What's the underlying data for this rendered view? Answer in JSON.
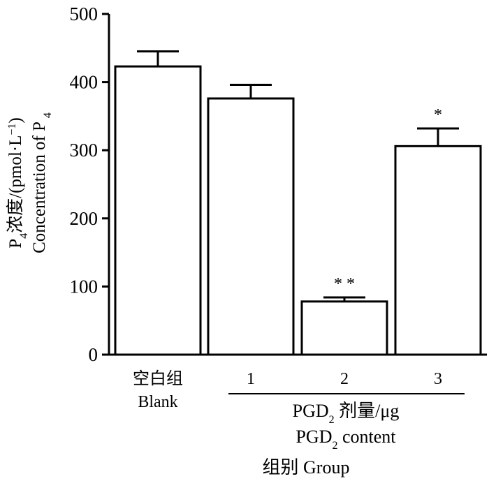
{
  "chart_data": {
    "type": "bar",
    "categories": [
      "空白组",
      "1",
      "2",
      "3"
    ],
    "category_sublabels": [
      "Blank",
      "",
      "",
      ""
    ],
    "values": [
      423,
      376,
      78,
      306
    ],
    "errors": [
      22,
      20,
      6,
      26
    ],
    "significance": [
      "",
      "",
      "* *",
      "*"
    ],
    "ylim": [
      0,
      500
    ],
    "yticks": [
      0,
      100,
      200,
      300,
      400,
      500
    ],
    "ylabel": {
      "prefix": "P",
      "prefix_sub": "4",
      "text": "浓度/(pmol·L",
      "sup": "−1",
      "suffix": ")",
      "english": "Concentration of P",
      "english_sub": "4"
    },
    "xlabel": {
      "dose_main": "PGD",
      "dose_sub": "2",
      "dose_suffix": " 剂量/μg",
      "content_main": "PGD",
      "content_sub": "2",
      "content_suffix": " content",
      "group": "组别 Group"
    },
    "grid": false,
    "bar_color": "#ffffff",
    "line_color": "#000000"
  }
}
